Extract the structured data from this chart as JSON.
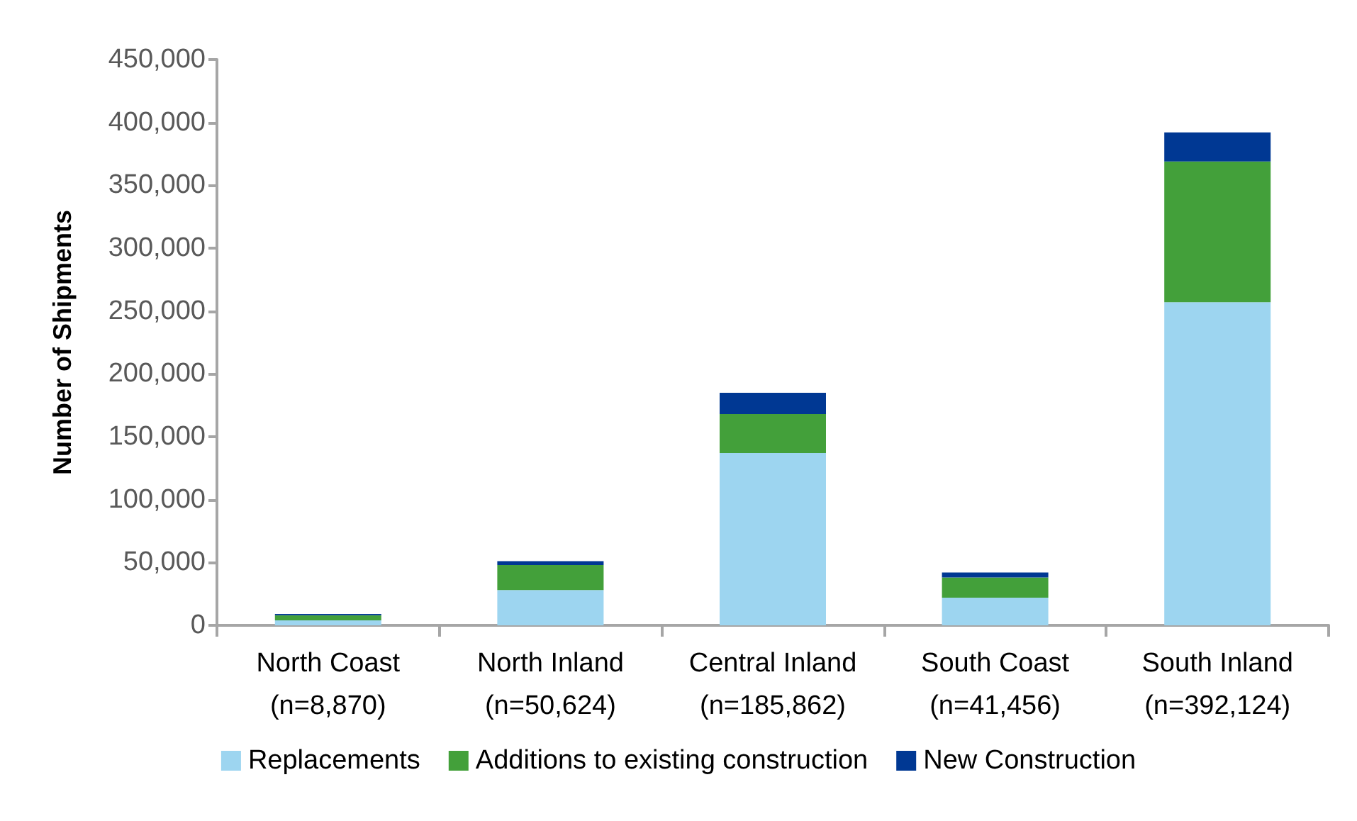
{
  "chart_data": {
    "type": "bar",
    "stacked": true,
    "ylabel": "Number of Shipments",
    "categories": [
      "North Coast\n(n=8,870)",
      "North Inland\n(n=50,624)",
      "Central Inland\n(n=185,862)",
      "South Coast\n(n=41,456)",
      "South Inland\n(n=392,124)"
    ],
    "series": [
      {
        "name": "Replacements",
        "color": "#9dd5f0",
        "values": [
          4000,
          28000,
          137000,
          22000,
          257000
        ]
      },
      {
        "name": "Additions to existing construction",
        "color": "#43a03a",
        "values": [
          4000,
          20000,
          31000,
          16000,
          112000
        ]
      },
      {
        "name": "New Construction",
        "color": "#003893",
        "values": [
          1000,
          3000,
          17000,
          4000,
          23000
        ]
      }
    ],
    "ylim": [
      0,
      450000
    ],
    "yticks": [
      0,
      {
        "value": 50000,
        "label": "50,000"
      },
      {
        "value": 100000,
        "label": "100,000"
      },
      {
        "value": 150000,
        "label": "150,000"
      },
      {
        "value": 200000,
        "label": "200,000"
      },
      {
        "value": 250000,
        "label": "250,000"
      },
      {
        "value": 300000,
        "label": "300,000"
      },
      {
        "value": 350000,
        "label": "350,000"
      },
      {
        "value": 400000,
        "label": "400,000"
      },
      {
        "value": 450000,
        "label": "450,000"
      }
    ],
    "grid": false,
    "legend": "bottom"
  }
}
